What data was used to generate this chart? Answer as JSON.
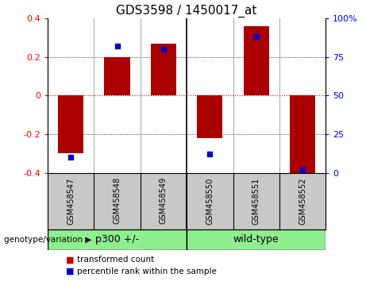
{
  "title": "GDS3598 / 1450017_at",
  "samples": [
    "GSM458547",
    "GSM458548",
    "GSM458549",
    "GSM458550",
    "GSM458551",
    "GSM458552"
  ],
  "transformed_count": [
    -0.3,
    0.2,
    0.27,
    -0.22,
    0.36,
    -0.4
  ],
  "percentile_rank": [
    10,
    82,
    80,
    12,
    88,
    2
  ],
  "ylim_left": [
    -0.4,
    0.4
  ],
  "ylim_right": [
    0,
    100
  ],
  "yticks_left": [
    -0.4,
    -0.2,
    0,
    0.2,
    0.4
  ],
  "yticks_right": [
    0,
    25,
    50,
    75,
    100
  ],
  "bar_color": "#aa0000",
  "dot_color": "#0000cc",
  "group_labels": [
    "p300 +/-",
    "wild-type"
  ],
  "group_colors": [
    "#90ee90",
    "#90ee90"
  ],
  "group_split": 3,
  "genotype_label": "genotype/variation",
  "legend_items": [
    "transformed count",
    "percentile rank within the sample"
  ],
  "legend_colors": [
    "#cc0000",
    "#0000cc"
  ],
  "zero_line_color": "#cc0000",
  "background_plot": "#ffffff",
  "background_sample": "#c8c8c8",
  "title_fontsize": 11,
  "tick_fontsize": 8,
  "sample_fontsize": 7
}
